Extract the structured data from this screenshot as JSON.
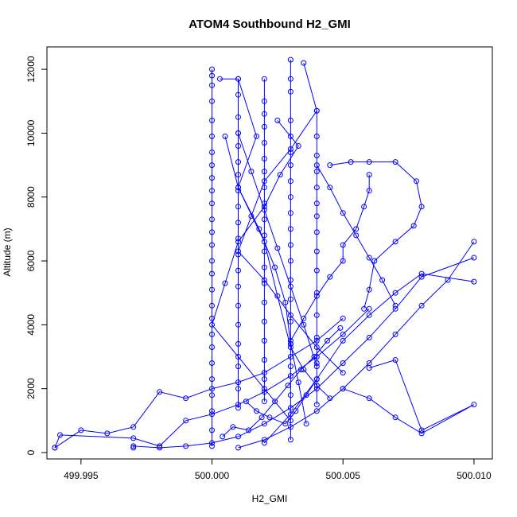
{
  "colors": {
    "series": "#0000ff",
    "axis": "#000000",
    "background": "#ffffff"
  },
  "chart_data": {
    "type": "line",
    "title": "ATOM4 Southbound H2_GMI",
    "xlabel": "H2_GMI",
    "ylabel": "Altitude (m)",
    "xlim": [
      499.9937,
      500.0107
    ],
    "ylim": [
      -200,
      12700
    ],
    "x_ticks": [
      499.995,
      500.0,
      500.005,
      500.01
    ],
    "x_tick_labels": [
      "499.995",
      "500.000",
      "500.005",
      "500.010"
    ],
    "y_ticks": [
      0,
      2000,
      4000,
      6000,
      8000,
      10000,
      12000
    ],
    "y_tick_labels": [
      "0",
      "2000",
      "4000",
      "6000",
      "8000",
      "10000",
      "12000"
    ],
    "grid": false,
    "markers": "open-circle",
    "series_note_free": true,
    "series": [
      {
        "x": [
          500.0,
          500.0,
          500.0,
          500.0,
          500.0,
          500.0,
          500.0,
          500.0,
          500.0,
          500.0,
          500.0,
          500.0,
          500.0,
          500.0,
          500.0,
          500.0,
          500.0,
          500.0,
          500.0,
          500.0,
          500.0,
          500.0,
          500.0,
          500.0,
          500.0,
          500.0,
          500.0
        ],
        "y": [
          12000,
          11800,
          11500,
          11000,
          10400,
          9900,
          9400,
          9000,
          8600,
          8200,
          7800,
          7300,
          6900,
          6500,
          6000,
          5600,
          5100,
          4600,
          4200,
          3700,
          3300,
          2800,
          2300,
          1800,
          1300,
          700,
          200
        ]
      },
      {
        "x": [
          500.001,
          500.001,
          500.001,
          500.001,
          500.001,
          500.001,
          500.001,
          500.001,
          500.001,
          500.001,
          500.001,
          500.001,
          500.001,
          500.001,
          500.001,
          500.001,
          500.001,
          500.001,
          500.001,
          500.001
        ],
        "y": [
          11700,
          11200,
          10500,
          10000,
          9600,
          9100,
          8700,
          8200,
          7700,
          7200,
          6700,
          6200,
          5700,
          5200,
          4600,
          4000,
          3400,
          2700,
          2000,
          1400
        ]
      },
      {
        "x": [
          500.002,
          500.002,
          500.002,
          500.002,
          500.002,
          500.002,
          500.002,
          500.002,
          500.002,
          500.002,
          500.002,
          500.002,
          500.002,
          500.002,
          500.002,
          500.002,
          500.002,
          500.002,
          500.002,
          500.002
        ],
        "y": [
          11700,
          11000,
          10600,
          10200,
          9700,
          9200,
          8800,
          8300,
          7800,
          7300,
          6800,
          6300,
          5800,
          5300,
          4700,
          4100,
          3500,
          2900,
          2300,
          1600
        ]
      },
      {
        "x": [
          500.003,
          500.003,
          500.003,
          500.003,
          500.003,
          500.003,
          500.003,
          500.003,
          500.003,
          500.003,
          500.003,
          500.003,
          500.003,
          500.003,
          500.003,
          500.003,
          500.003,
          500.003,
          500.003,
          500.003
        ],
        "y": [
          12300,
          11700,
          11300,
          10400,
          9900,
          9400,
          9000,
          8500,
          8000,
          7500,
          7000,
          6500,
          6000,
          5400,
          4800,
          4100,
          3400,
          2700,
          1800,
          400
        ]
      },
      {
        "x": [
          500.004,
          500.004,
          500.004,
          500.004,
          500.004,
          500.004,
          500.004,
          500.004,
          500.004,
          500.004,
          500.004,
          500.004,
          500.004,
          500.004,
          500.004
        ],
        "y": [
          10700,
          9900,
          9300,
          8800,
          8300,
          7800,
          7400,
          6900,
          6300,
          5700,
          5000,
          4300,
          3600,
          2800,
          1500
        ]
      },
      {
        "x": [
          499.994,
          499.995,
          499.996,
          499.997,
          499.998,
          499.999,
          500.0,
          500.001,
          500.002,
          500.003,
          500.004,
          500.005
        ],
        "y": [
          150,
          700,
          600,
          800,
          1900,
          1700,
          2000,
          2200,
          2500,
          3000,
          3500,
          4200
        ]
      },
      {
        "x": [
          499.994,
          499.9942,
          499.997,
          499.998,
          499.999,
          500.0,
          500.001,
          500.002,
          500.003,
          500.004,
          500.005,
          500.006
        ],
        "y": [
          150,
          550,
          450,
          200,
          1000,
          1200,
          1500,
          1900,
          2400,
          3000,
          3700,
          4500
        ]
      },
      {
        "x": [
          499.997,
          499.997,
          499.998,
          499.999,
          500.0,
          500.001,
          500.002,
          500.003,
          500.004,
          500.005,
          500.006,
          500.007,
          500.008,
          500.01
        ],
        "y": [
          150,
          200,
          150,
          200,
          300,
          500,
          900,
          1400,
          2000,
          2800,
          3600,
          4500,
          5500,
          6100
        ]
      },
      {
        "x": [
          500.001,
          500.002,
          500.003,
          500.004,
          500.005,
          500.006,
          500.007,
          500.008,
          500.009,
          500.01
        ],
        "y": [
          150,
          400,
          800,
          1300,
          2000,
          2800,
          3700,
          4600,
          5400,
          6600
        ]
      },
      {
        "x": [
          500.002,
          500.003,
          500.004,
          500.005,
          500.006,
          500.007,
          500.008,
          500.01
        ],
        "y": [
          300,
          1200,
          2300,
          3500,
          4300,
          5000,
          5600,
          5350
        ]
      },
      {
        "x": [
          500.006,
          500.007,
          500.008,
          500.01,
          500.008,
          500.007,
          500.006,
          500.005
        ],
        "y": [
          2650,
          2900,
          700,
          1500,
          600,
          1100,
          1700,
          2000
        ]
      },
      {
        "x": [
          500.0045,
          500.0053,
          500.006,
          500.007,
          500.0078,
          500.008,
          500.0077,
          500.007,
          500.0062,
          500.006,
          500.0058
        ],
        "y": [
          9000,
          9100,
          9100,
          9100,
          8500,
          7700,
          7100,
          6600,
          6000,
          5100,
          4500
        ]
      },
      {
        "x": [
          500.006,
          500.006,
          500.0058,
          500.0055,
          500.005,
          500.005,
          500.0045,
          500.004,
          500.0035,
          500.003
        ],
        "y": [
          8700,
          8200,
          7700,
          7000,
          6500,
          6000,
          5500,
          4900,
          4200,
          3500
        ]
      },
      {
        "x": [
          500.0003,
          500.001,
          500.0017,
          500.001,
          500.002,
          500.0025,
          500.003,
          500.0035,
          500.004,
          500.0045
        ],
        "y": [
          11700,
          11700,
          9900,
          8300,
          6600,
          4900,
          3300,
          2600,
          2100,
          1700
        ]
      },
      {
        "x": [
          500.0035,
          500.004,
          500.003,
          500.002,
          500.0015,
          500.001,
          500.002,
          500.003,
          500.004,
          500.005
        ],
        "y": [
          12200,
          10700,
          9500,
          8500,
          7400,
          6300,
          5400,
          4300,
          3300,
          2500
        ]
      },
      {
        "x": [
          500.0025,
          500.0033,
          500.0026,
          500.002,
          500.001,
          500.0005,
          500.0,
          500.001,
          500.002,
          500.003
        ],
        "y": [
          10400,
          9600,
          8700,
          7700,
          6600,
          5300,
          4000,
          3000,
          2000,
          1000
        ]
      },
      {
        "x": [
          500.001,
          500.0015,
          500.002,
          500.0025,
          500.003,
          500.0035,
          500.004
        ],
        "y": [
          10000,
          8800,
          7600,
          6400,
          5200,
          4000,
          2700
        ]
      },
      {
        "x": [
          500.0005,
          500.001,
          500.0018,
          500.0024,
          500.0028,
          500.003,
          500.0033,
          500.0036
        ],
        "y": [
          9900,
          8300,
          7000,
          5800,
          4700,
          3400,
          2200,
          900
        ]
      },
      {
        "x": [
          500.004,
          500.0045,
          500.005,
          500.0055,
          500.006,
          500.0065,
          500.007
        ],
        "y": [
          9000,
          8300,
          7500,
          6800,
          6100,
          5400,
          4600
        ]
      },
      {
        "x": [
          500.0013,
          500.0017,
          500.0022,
          500.0028,
          500.0032,
          500.0036,
          500.004
        ],
        "y": [
          1600,
          1300,
          1100,
          900,
          1300,
          1800,
          2300
        ]
      },
      {
        "x": [
          500.0004,
          500.0008,
          500.0014,
          500.0019,
          500.0024,
          500.0029,
          500.0034,
          500.0039,
          500.0044,
          500.0049
        ],
        "y": [
          500,
          800,
          700,
          1100,
          1600,
          2100,
          2600,
          3000,
          3500,
          3900
        ]
      }
    ]
  }
}
